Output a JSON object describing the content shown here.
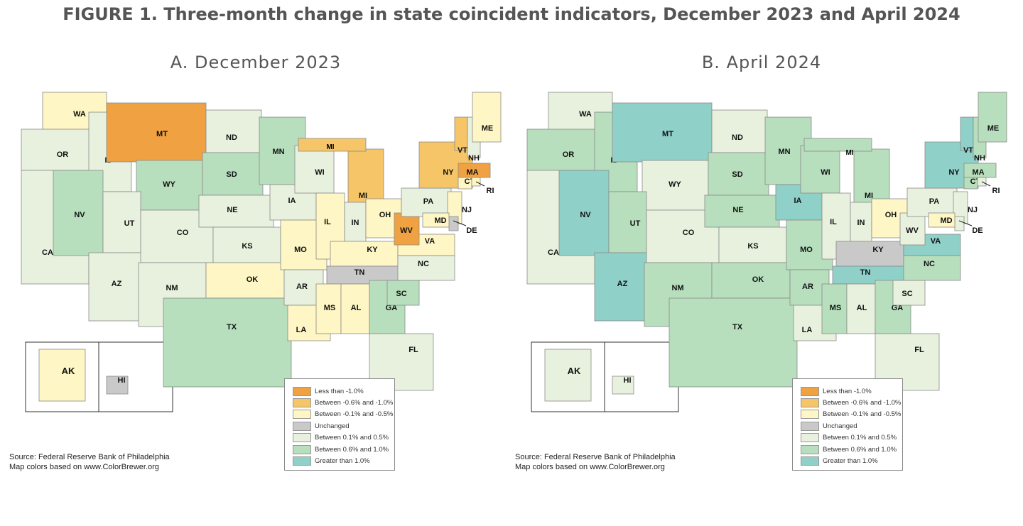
{
  "title": "FIGURE 1. Three-month change in state coincident indicators, December 2023 and April 2024",
  "colors": {
    "lt_neg1": "#f0a242",
    "neg06_1": "#f6c568",
    "neg01_05": "#fef6c4",
    "unchanged": "#c9c9c9",
    "pos01_05": "#e7f1dd",
    "pos06_1": "#b7dfbd",
    "gt1": "#8fd0c8"
  },
  "legend": [
    {
      "key": "lt_neg1",
      "label": "Less than -1.0%"
    },
    {
      "key": "neg06_1",
      "label": "Between -0.6% and -1.0%"
    },
    {
      "key": "neg01_05",
      "label": "Between -0.1% and -0.5%"
    },
    {
      "key": "unchanged",
      "label": "Unchanged"
    },
    {
      "key": "pos01_05",
      "label": "Between 0.1% and 0.5%"
    },
    {
      "key": "pos06_1",
      "label": "Between 0.6% and 1.0%"
    },
    {
      "key": "gt1",
      "label": "Greater than 1.0%"
    }
  ],
  "source": [
    "Source: Federal Reserve Bank of Philadelphia",
    "Map colors based on www.ColorBrewer.org"
  ],
  "maps": [
    {
      "title": "A. December 2023",
      "states": {
        "WA": "neg01_05",
        "OR": "pos01_05",
        "CA": "pos01_05",
        "ID": "pos01_05",
        "NV": "pos06_1",
        "MT": "lt_neg1",
        "WY": "pos06_1",
        "UT": "pos01_05",
        "AZ": "pos01_05",
        "CO": "pos01_05",
        "NM": "pos01_05",
        "ND": "pos01_05",
        "SD": "pos06_1",
        "NE": "pos01_05",
        "KS": "pos01_05",
        "OK": "neg01_05",
        "TX": "pos06_1",
        "MN": "pos06_1",
        "IA": "pos01_05",
        "MO": "neg01_05",
        "AR": "pos01_05",
        "LA": "neg01_05",
        "WI": "pos01_05",
        "IL": "neg01_05",
        "MI": "neg06_1",
        "IN": "pos01_05",
        "OH": "neg01_05",
        "KY": "neg01_05",
        "TN": "unchanged",
        "MS": "neg01_05",
        "AL": "neg01_05",
        "GA": "pos06_1",
        "FL": "pos01_05",
        "SC": "pos06_1",
        "NC": "pos01_05",
        "VA": "neg01_05",
        "WV": "lt_neg1",
        "PA": "pos01_05",
        "NY": "neg06_1",
        "VT": "neg06_1",
        "NH": "pos01_05",
        "ME": "neg01_05",
        "MA": "lt_neg1",
        "CT": "neg01_05",
        "RI": "neg01_05",
        "NJ": "neg01_05",
        "DE": "unchanged",
        "MD": "neg01_05",
        "AK": "neg01_05",
        "HI": "unchanged"
      }
    },
    {
      "title": "B. April 2024",
      "states": {
        "WA": "pos01_05",
        "OR": "pos06_1",
        "CA": "pos01_05",
        "ID": "pos06_1",
        "NV": "gt1",
        "MT": "gt1",
        "WY": "pos01_05",
        "UT": "pos06_1",
        "AZ": "gt1",
        "CO": "pos01_05",
        "NM": "pos06_1",
        "ND": "pos01_05",
        "SD": "pos06_1",
        "NE": "pos06_1",
        "KS": "pos01_05",
        "OK": "pos06_1",
        "TX": "pos06_1",
        "MN": "pos06_1",
        "IA": "gt1",
        "MO": "pos06_1",
        "AR": "pos06_1",
        "LA": "pos01_05",
        "WI": "pos06_1",
        "IL": "pos01_05",
        "MI": "pos06_1",
        "IN": "pos01_05",
        "OH": "neg01_05",
        "KY": "unchanged",
        "TN": "gt1",
        "MS": "pos06_1",
        "AL": "pos01_05",
        "GA": "pos06_1",
        "FL": "pos01_05",
        "SC": "pos01_05",
        "NC": "pos06_1",
        "VA": "gt1",
        "WV": "pos01_05",
        "PA": "pos01_05",
        "NY": "gt1",
        "VT": "gt1",
        "NH": "pos06_1",
        "ME": "pos06_1",
        "MA": "pos06_1",
        "CT": "pos06_1",
        "RI": "pos01_05",
        "NJ": "pos01_05",
        "DE": "pos01_05",
        "MD": "neg01_05",
        "AK": "pos01_05",
        "HI": "pos01_05"
      }
    }
  ]
}
